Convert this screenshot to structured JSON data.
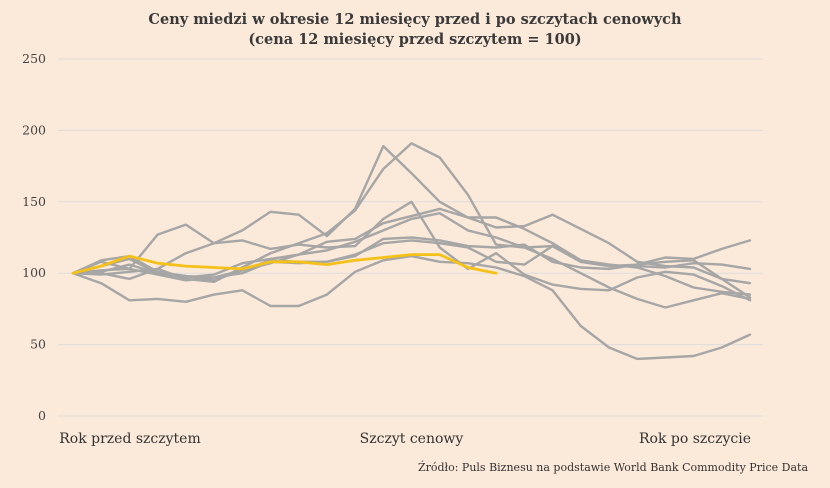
{
  "title_line1": "Ceny miedzi w okresie 12 miesięcy przed i po szczytach cenowych",
  "title_line2": "(cena 12 miesięcy przed szczytem = 100)",
  "source": "Źródło: Puls Biznesu na podstawie World Bank Commodity Price Data",
  "chart_data": {
    "type": "line",
    "title": "Ceny miedzi w okresie 12 miesięcy przed i po szczytach cenowych (cena 12 miesięcy przed szczytem = 100)",
    "ylim": [
      0,
      250
    ],
    "yticks": [
      0,
      50,
      100,
      150,
      200,
      250
    ],
    "xlim": [
      0,
      24
    ],
    "x_labels": [
      {
        "x": 0,
        "label": "Rok przed szczytem"
      },
      {
        "x": 12,
        "label": "Szczyt cenowy"
      },
      {
        "x": 24,
        "label": "Rok po szczycie"
      }
    ],
    "grid": true,
    "colors": {
      "history": "#a6a6a6",
      "current": "#f5c118",
      "grid": "#dddddd"
    },
    "series": [
      {
        "style": "history",
        "values": [
          100,
          93,
          81,
          82,
          80,
          85,
          88,
          77,
          77,
          85,
          101,
          109,
          112,
          108,
          107,
          104,
          98,
          88,
          63,
          48,
          40,
          41,
          42,
          48,
          57
        ]
      },
      {
        "style": "history",
        "values": [
          100,
          109,
          112,
          101,
          98,
          97,
          102,
          109,
          108,
          108,
          112,
          124,
          125,
          123,
          119,
          118,
          120,
          108,
          104,
          103,
          106,
          108,
          109,
          96,
          83
        ]
      },
      {
        "style": "history",
        "values": [
          100,
          100,
          96,
          103,
          114,
          121,
          123,
          117,
          120,
          118,
          119,
          138,
          150,
          118,
          103,
          114,
          99,
          92,
          89,
          88,
          97,
          101,
          99,
          91,
          81
        ]
      },
      {
        "style": "history",
        "values": [
          100,
          99,
          101,
          103,
          96,
          94,
          104,
          114,
          121,
          128,
          144,
          173,
          191,
          181,
          155,
          120,
          118,
          119,
          108,
          105,
          106,
          111,
          110,
          117,
          123
        ]
      },
      {
        "style": "history",
        "values": [
          100,
          102,
          103,
          99,
          95,
          97,
          100,
          108,
          107,
          108,
          113,
          121,
          123,
          121,
          118,
          108,
          106,
          119,
          108,
          105,
          105,
          104,
          107,
          106,
          103
        ]
      },
      {
        "style": "history",
        "values": [
          100,
          108,
          103,
          127,
          134,
          121,
          130,
          143,
          141,
          126,
          145,
          189,
          170,
          150,
          139,
          132,
          133,
          141,
          131,
          121,
          108,
          105,
          104,
          96,
          93
        ]
      },
      {
        "style": "history",
        "values": [
          100,
          101,
          106,
          100,
          97,
          99,
          107,
          110,
          113,
          122,
          124,
          135,
          140,
          145,
          139,
          139,
          131,
          121,
          109,
          106,
          104,
          98,
          90,
          87,
          85
        ]
      },
      {
        "style": "history",
        "values": [
          100,
          105,
          110,
          100,
          98,
          95,
          102,
          107,
          113,
          116,
          122,
          130,
          138,
          142,
          130,
          125,
          118,
          110,
          100,
          90,
          82,
          76,
          81,
          86,
          82
        ]
      },
      {
        "style": "current",
        "values": [
          100,
          105,
          112,
          107,
          105,
          104,
          103,
          108,
          108,
          106,
          109,
          111,
          113,
          113,
          104,
          100
        ]
      }
    ]
  }
}
